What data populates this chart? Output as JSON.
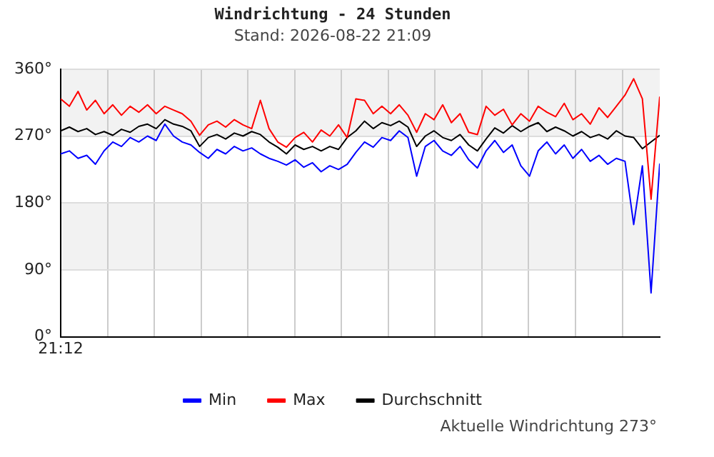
{
  "chart_data": {
    "type": "line",
    "title": "Windrichtung - 24 Stunden",
    "subtitle": "Stand: 2026-08-22 21:09",
    "categories": [
      "21:12",
      null,
      null,
      null,
      null,
      null,
      null,
      null,
      null,
      null,
      null,
      null,
      null,
      null,
      null,
      null,
      null,
      null,
      null,
      null,
      null,
      null,
      null,
      null,
      null,
      null,
      null,
      null,
      null,
      null,
      null,
      null,
      null,
      null,
      null,
      null,
      null,
      null,
      null,
      null,
      null,
      null,
      null,
      null,
      null,
      null,
      null,
      null,
      null,
      null,
      null,
      null,
      null,
      null,
      null,
      null,
      null,
      null,
      null,
      null,
      null,
      null,
      null,
      null,
      null,
      null,
      null,
      null,
      null,
      null
    ],
    "series": [
      {
        "name": "Min",
        "color": "#0000ff",
        "values": [
          246,
          250,
          240,
          244,
          232,
          250,
          262,
          256,
          268,
          262,
          270,
          264,
          286,
          270,
          262,
          258,
          248,
          240,
          252,
          246,
          256,
          250,
          254,
          246,
          240,
          236,
          231,
          238,
          228,
          234,
          222,
          230,
          225,
          232,
          248,
          262,
          255,
          268,
          264,
          277,
          268,
          216,
          256,
          264,
          250,
          244,
          256,
          238,
          227,
          250,
          264,
          248,
          258,
          230,
          216,
          250,
          262,
          246,
          258,
          240,
          252,
          236,
          244,
          232,
          240,
          236,
          151,
          230,
          59,
          233
        ]
      },
      {
        "name": "Max",
        "color": "#ff0000",
        "values": [
          320,
          310,
          330,
          305,
          318,
          300,
          312,
          298,
          310,
          302,
          312,
          300,
          310,
          305,
          300,
          290,
          271,
          285,
          290,
          282,
          292,
          285,
          280,
          318,
          280,
          262,
          255,
          268,
          275,
          262,
          278,
          270,
          285,
          268,
          320,
          318,
          300,
          310,
          300,
          312,
          298,
          275,
          300,
          292,
          312,
          288,
          300,
          275,
          272,
          310,
          298,
          306,
          285,
          300,
          290,
          310,
          302,
          296,
          314,
          292,
          300,
          286,
          308,
          295,
          310,
          325,
          347,
          320,
          185,
          323
        ]
      },
      {
        "name": "Durchschnitt",
        "color": "#000000",
        "values": [
          277,
          282,
          276,
          280,
          272,
          276,
          271,
          279,
          275,
          283,
          286,
          280,
          292,
          286,
          283,
          277,
          256,
          268,
          272,
          266,
          274,
          270,
          276,
          272,
          262,
          255,
          246,
          258,
          252,
          256,
          250,
          256,
          252,
          268,
          277,
          290,
          280,
          288,
          284,
          290,
          282,
          256,
          270,
          277,
          268,
          264,
          272,
          258,
          250,
          266,
          281,
          274,
          284,
          276,
          283,
          288,
          276,
          282,
          277,
          270,
          276,
          268,
          272,
          266,
          277,
          270,
          268,
          253,
          262,
          271
        ]
      }
    ],
    "ylim": [
      0,
      360
    ],
    "yticks": [
      {
        "value": 0,
        "label": "0°"
      },
      {
        "value": 90,
        "label": "90°"
      },
      {
        "value": 180,
        "label": "180°"
      },
      {
        "value": 270,
        "label": "270°"
      },
      {
        "value": 360,
        "label": "360°"
      }
    ],
    "bands": [
      {
        "axis": "y",
        "from": 270,
        "to": 360,
        "color": "#f2f2f2"
      },
      {
        "axis": "y",
        "from": 90,
        "to": 180,
        "color": "#f2f2f2"
      }
    ],
    "grid": true,
    "legend": "bottom",
    "marker": "none",
    "line_style": "solid",
    "annotations": [
      "Aktuelle Windrichtung 273°"
    ]
  }
}
